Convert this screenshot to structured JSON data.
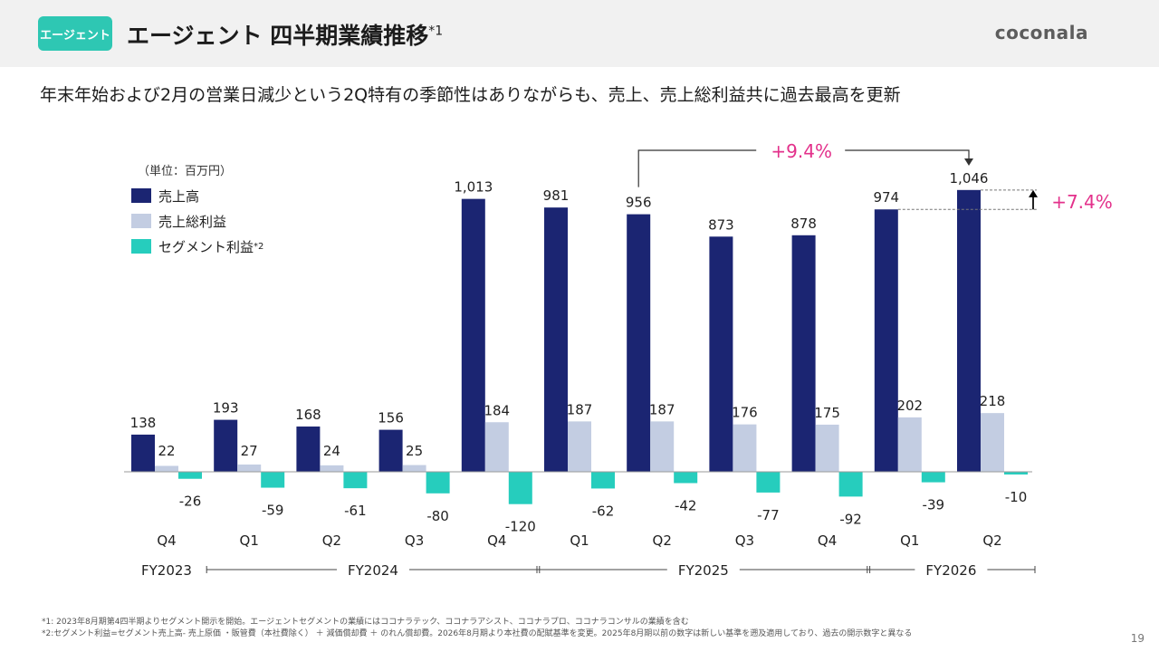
{
  "header": {
    "badge": "エージェント",
    "title": "エージェント 四半期業績推移",
    "title_note": "*1",
    "logo": "coconala"
  },
  "subtitle": "年末年始および2月の営業日減少という2Q特有の季節性はありながらも、売上、売上総利益共に過去最高を更新",
  "chart_data": {
    "type": "bar",
    "unit_label": "（単位：百万円）",
    "categories": [
      "Q4",
      "Q1",
      "Q2",
      "Q3",
      "Q4",
      "Q1",
      "Q2",
      "Q3",
      "Q4",
      "Q1",
      "Q2"
    ],
    "fiscal_years": [
      {
        "label": "FY2023",
        "start": 0,
        "end": 0
      },
      {
        "label": "FY2024",
        "start": 1,
        "end": 4
      },
      {
        "label": "FY2025",
        "start": 5,
        "end": 8
      },
      {
        "label": "FY2026",
        "start": 9,
        "end": 10
      }
    ],
    "series": [
      {
        "name": "売上高",
        "color": "#1b2572",
        "values": [
          138,
          193,
          168,
          156,
          1013,
          981,
          956,
          873,
          878,
          974,
          1046
        ],
        "labels": [
          "138",
          "193",
          "168",
          "156",
          "1,013",
          "981",
          "956",
          "873",
          "878",
          "974",
          "1,046"
        ]
      },
      {
        "name": "売上総利益",
        "color": "#c3cde2",
        "values": [
          22,
          27,
          24,
          25,
          184,
          187,
          187,
          176,
          175,
          202,
          218
        ],
        "labels": [
          "22",
          "27",
          "24",
          "25",
          "184",
          "187",
          "187",
          "176",
          "175",
          "202",
          "218"
        ]
      },
      {
        "name": "セグメント利益",
        "name_note": "*2",
        "color": "#26cdbd",
        "values": [
          -26,
          -59,
          -61,
          -80,
          -120,
          -62,
          -42,
          -77,
          -92,
          -39,
          -10
        ],
        "labels": [
          "-26",
          "-59",
          "-61",
          "-80",
          "-120",
          "-62",
          "-42",
          "-77",
          "-92",
          "-39",
          "-10"
        ]
      }
    ],
    "annotations": {
      "yoy_growth": "+9.4%",
      "qoq_growth": "+7.4%"
    }
  },
  "footnotes": [
    "*1: 2023年8月期第4四半期よりセグメント開示を開始。エージェントセグメントの業績にはココナラテック、ココナラアシスト、ココナラプロ、ココナラコンサルの業績を含む",
    "*2:セグメント利益=セグメント売上高- 売上原価 ・販管費（本社費除く） ＋ 減価償却費 ＋ のれん償却費。2026年8月期より本社費の配賦基準を変更。2025年8月期以前の数字は新しい基準を遡及適用しており、過去の開示数字と異なる"
  ],
  "page_number": "19"
}
